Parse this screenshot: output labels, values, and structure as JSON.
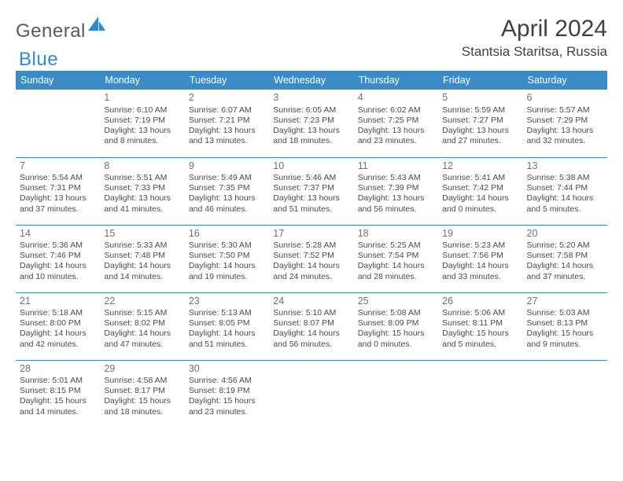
{
  "logo": {
    "part1": "General",
    "part2": "Blue",
    "shape_color": "#2f8bcc",
    "text_gray": "#5a5a5a"
  },
  "title": "April 2024",
  "location": "Stantsia Staritsa, Russia",
  "colors": {
    "header_bg": "#3b8bc7",
    "header_text": "#ffffff",
    "border": "#3b8bc7",
    "body_text": "#4a4a4a",
    "daynum": "#707070",
    "title_text": "#404040"
  },
  "typography": {
    "month_title_fontsize": 30,
    "location_fontsize": 17,
    "dayheader_fontsize": 12.5,
    "daynum_fontsize": 12.5,
    "cell_fontsize": 10.5
  },
  "day_headers": [
    "Sunday",
    "Monday",
    "Tuesday",
    "Wednesday",
    "Thursday",
    "Friday",
    "Saturday"
  ],
  "weeks": [
    [
      null,
      {
        "n": "1",
        "sr": "6:10 AM",
        "ss": "7:19 PM",
        "dl": "13 hours and 8 minutes."
      },
      {
        "n": "2",
        "sr": "6:07 AM",
        "ss": "7:21 PM",
        "dl": "13 hours and 13 minutes."
      },
      {
        "n": "3",
        "sr": "6:05 AM",
        "ss": "7:23 PM",
        "dl": "13 hours and 18 minutes."
      },
      {
        "n": "4",
        "sr": "6:02 AM",
        "ss": "7:25 PM",
        "dl": "13 hours and 23 minutes."
      },
      {
        "n": "5",
        "sr": "5:59 AM",
        "ss": "7:27 PM",
        "dl": "13 hours and 27 minutes."
      },
      {
        "n": "6",
        "sr": "5:57 AM",
        "ss": "7:29 PM",
        "dl": "13 hours and 32 minutes."
      }
    ],
    [
      {
        "n": "7",
        "sr": "5:54 AM",
        "ss": "7:31 PM",
        "dl": "13 hours and 37 minutes."
      },
      {
        "n": "8",
        "sr": "5:51 AM",
        "ss": "7:33 PM",
        "dl": "13 hours and 41 minutes."
      },
      {
        "n": "9",
        "sr": "5:49 AM",
        "ss": "7:35 PM",
        "dl": "13 hours and 46 minutes."
      },
      {
        "n": "10",
        "sr": "5:46 AM",
        "ss": "7:37 PM",
        "dl": "13 hours and 51 minutes."
      },
      {
        "n": "11",
        "sr": "5:43 AM",
        "ss": "7:39 PM",
        "dl": "13 hours and 56 minutes."
      },
      {
        "n": "12",
        "sr": "5:41 AM",
        "ss": "7:42 PM",
        "dl": "14 hours and 0 minutes."
      },
      {
        "n": "13",
        "sr": "5:38 AM",
        "ss": "7:44 PM",
        "dl": "14 hours and 5 minutes."
      }
    ],
    [
      {
        "n": "14",
        "sr": "5:36 AM",
        "ss": "7:46 PM",
        "dl": "14 hours and 10 minutes."
      },
      {
        "n": "15",
        "sr": "5:33 AM",
        "ss": "7:48 PM",
        "dl": "14 hours and 14 minutes."
      },
      {
        "n": "16",
        "sr": "5:30 AM",
        "ss": "7:50 PM",
        "dl": "14 hours and 19 minutes."
      },
      {
        "n": "17",
        "sr": "5:28 AM",
        "ss": "7:52 PM",
        "dl": "14 hours and 24 minutes."
      },
      {
        "n": "18",
        "sr": "5:25 AM",
        "ss": "7:54 PM",
        "dl": "14 hours and 28 minutes."
      },
      {
        "n": "19",
        "sr": "5:23 AM",
        "ss": "7:56 PM",
        "dl": "14 hours and 33 minutes."
      },
      {
        "n": "20",
        "sr": "5:20 AM",
        "ss": "7:58 PM",
        "dl": "14 hours and 37 minutes."
      }
    ],
    [
      {
        "n": "21",
        "sr": "5:18 AM",
        "ss": "8:00 PM",
        "dl": "14 hours and 42 minutes."
      },
      {
        "n": "22",
        "sr": "5:15 AM",
        "ss": "8:02 PM",
        "dl": "14 hours and 47 minutes."
      },
      {
        "n": "23",
        "sr": "5:13 AM",
        "ss": "8:05 PM",
        "dl": "14 hours and 51 minutes."
      },
      {
        "n": "24",
        "sr": "5:10 AM",
        "ss": "8:07 PM",
        "dl": "14 hours and 56 minutes."
      },
      {
        "n": "25",
        "sr": "5:08 AM",
        "ss": "8:09 PM",
        "dl": "15 hours and 0 minutes."
      },
      {
        "n": "26",
        "sr": "5:06 AM",
        "ss": "8:11 PM",
        "dl": "15 hours and 5 minutes."
      },
      {
        "n": "27",
        "sr": "5:03 AM",
        "ss": "8:13 PM",
        "dl": "15 hours and 9 minutes."
      }
    ],
    [
      {
        "n": "28",
        "sr": "5:01 AM",
        "ss": "8:15 PM",
        "dl": "15 hours and 14 minutes."
      },
      {
        "n": "29",
        "sr": "4:58 AM",
        "ss": "8:17 PM",
        "dl": "15 hours and 18 minutes."
      },
      {
        "n": "30",
        "sr": "4:56 AM",
        "ss": "8:19 PM",
        "dl": "15 hours and 23 minutes."
      },
      null,
      null,
      null,
      null
    ]
  ]
}
